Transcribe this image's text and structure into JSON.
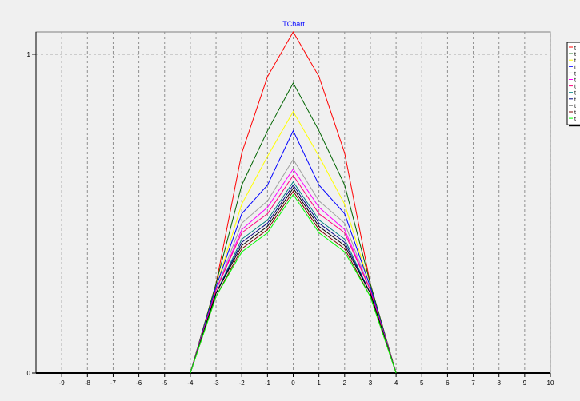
{
  "chart_data": {
    "type": "line",
    "title": "TChart",
    "xlabel": "",
    "ylabel": "",
    "xlim": [
      -10,
      10
    ],
    "ylim": [
      0,
      1.07
    ],
    "x_ticks": [
      -9,
      -8,
      -7,
      -6,
      -5,
      -4,
      -3,
      -2,
      -1,
      0,
      1,
      2,
      3,
      4,
      5,
      6,
      7,
      8,
      9,
      10
    ],
    "y_ticks": [
      0,
      1
    ],
    "grid": true,
    "legend_position": "right",
    "x": [
      -4,
      -3,
      -2,
      -1,
      0,
      1,
      2,
      3,
      4
    ],
    "series": [
      {
        "name": "t",
        "color": "#ff0000",
        "values": [
          0,
          0.28,
          0.69,
          0.93,
          1.07,
          0.93,
          0.69,
          0.28,
          0
        ]
      },
      {
        "name": "t",
        "color": "#006400",
        "values": [
          0,
          0.28,
          0.59,
          0.76,
          0.91,
          0.76,
          0.59,
          0.28,
          0
        ]
      },
      {
        "name": "t",
        "color": "#ffff00",
        "values": [
          0,
          0.27,
          0.53,
          0.68,
          0.82,
          0.68,
          0.53,
          0.27,
          0
        ]
      },
      {
        "name": "t",
        "color": "#0000ff",
        "values": [
          0,
          0.27,
          0.5,
          0.59,
          0.76,
          0.59,
          0.5,
          0.27,
          0
        ]
      },
      {
        "name": "t",
        "color": "#a0a0a0",
        "values": [
          0,
          0.26,
          0.47,
          0.54,
          0.67,
          0.54,
          0.47,
          0.26,
          0
        ]
      },
      {
        "name": "t",
        "color": "#ff00ff",
        "values": [
          0,
          0.26,
          0.45,
          0.52,
          0.64,
          0.52,
          0.45,
          0.26,
          0
        ]
      },
      {
        "name": "t",
        "color": "#ff0080",
        "values": [
          0,
          0.26,
          0.44,
          0.5,
          0.62,
          0.5,
          0.44,
          0.26,
          0
        ]
      },
      {
        "name": "t",
        "color": "#008080",
        "values": [
          0,
          0.25,
          0.42,
          0.48,
          0.6,
          0.48,
          0.42,
          0.25,
          0
        ]
      },
      {
        "name": "t",
        "color": "#000080",
        "values": [
          0,
          0.25,
          0.41,
          0.47,
          0.59,
          0.47,
          0.41,
          0.25,
          0
        ]
      },
      {
        "name": "t",
        "color": "#000000",
        "values": [
          0,
          0.25,
          0.4,
          0.46,
          0.58,
          0.46,
          0.4,
          0.25,
          0
        ]
      },
      {
        "name": "t",
        "color": "#800000",
        "values": [
          0,
          0.24,
          0.39,
          0.45,
          0.57,
          0.45,
          0.39,
          0.24,
          0
        ]
      },
      {
        "name": "t",
        "color": "#00ff00",
        "values": [
          0,
          0.24,
          0.38,
          0.44,
          0.56,
          0.44,
          0.38,
          0.24,
          0
        ]
      }
    ]
  }
}
